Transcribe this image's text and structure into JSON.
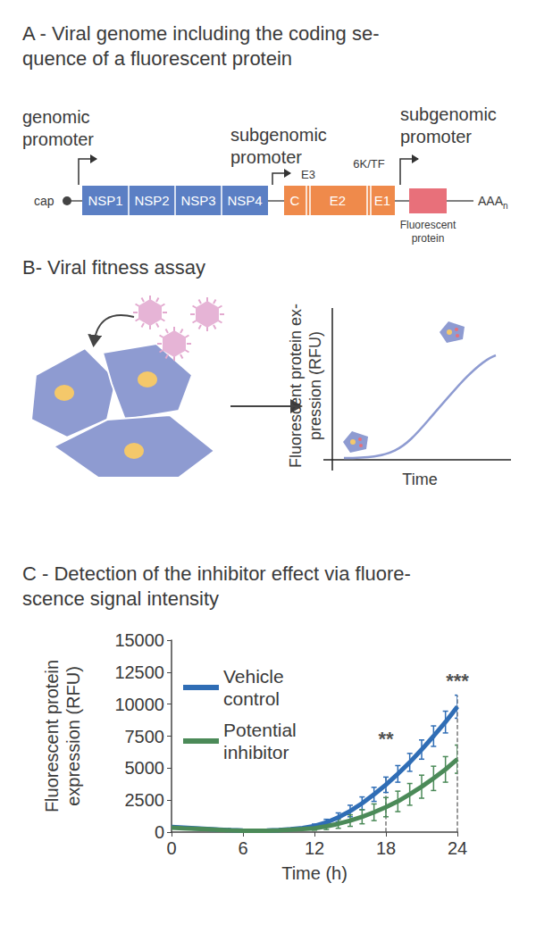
{
  "panel_a": {
    "title": [
      "A - Viral genome including the coding se-",
      "quence of a fluorescent protein"
    ],
    "promoters": [
      [
        "genomic",
        "promoter"
      ],
      [
        "subgenomic",
        "promoter"
      ],
      [
        "subgenomic",
        "promoter"
      ]
    ],
    "cap": "cap",
    "nonstructural_proteins": [
      "NSP1",
      "NSP2",
      "NSP3",
      "NSP4"
    ],
    "structural_proteins": [
      "C",
      "E2",
      "E1"
    ],
    "small_labels": [
      "E3",
      "6K/TF"
    ],
    "reporter": [
      "Fluorescent",
      "protein"
    ],
    "poly_a": "AAA",
    "poly_a_subscript": "n"
  },
  "panel_b": {
    "title": "B- Viral fitness assay",
    "y_label": [
      "Fluorescent protein ex-",
      "pression (RFU)"
    ],
    "x_label": "Time"
  },
  "panel_c": {
    "title": [
      "C - Detection of the inhibitor effect via fluore-",
      "scence signal intensity"
    ]
  },
  "chart_data": {
    "type": "line",
    "x_label": "Time (h)",
    "y_label": "Fluorescent protein\nexpression (RFU)",
    "x": [
      0,
      1,
      2,
      3,
      4,
      5,
      6,
      7,
      8,
      9,
      10,
      11,
      12,
      13,
      14,
      15,
      16,
      17,
      18,
      19,
      20,
      21,
      22,
      23,
      24
    ],
    "xlim": [
      0,
      24
    ],
    "xticks": [
      0,
      6,
      12,
      18,
      24
    ],
    "ylim": [
      0,
      15000
    ],
    "yticks": [
      0,
      2500,
      5000,
      7500,
      10000,
      12500,
      15000
    ],
    "grid": false,
    "legend": "top-left",
    "series": [
      {
        "name": "Vehicle control",
        "color": "#2f6db5",
        "values": [
          400,
          350,
          300,
          250,
          200,
          150,
          120,
          110,
          120,
          150,
          220,
          320,
          480,
          750,
          1150,
          1650,
          2250,
          2950,
          3700,
          4550,
          5450,
          6450,
          7500,
          8600,
          9800
        ],
        "errors": [
          50,
          50,
          50,
          50,
          50,
          50,
          50,
          50,
          50,
          50,
          50,
          50,
          150,
          250,
          350,
          450,
          500,
          550,
          600,
          650,
          700,
          750,
          800,
          850,
          900
        ]
      },
      {
        "name": "Potential inhibitor",
        "color": "#4b8a58",
        "values": [
          350,
          300,
          260,
          220,
          180,
          140,
          110,
          100,
          110,
          140,
          190,
          240,
          300,
          450,
          650,
          900,
          1200,
          1550,
          1950,
          2400,
          2950,
          3550,
          4200,
          4900,
          5700
        ],
        "errors": [
          50,
          50,
          50,
          50,
          50,
          50,
          50,
          50,
          50,
          50,
          50,
          50,
          150,
          250,
          350,
          450,
          550,
          650,
          750,
          800,
          850,
          900,
          950,
          1000,
          1100
        ]
      }
    ],
    "annotations": [
      {
        "text": "**",
        "x": 18,
        "y": 7300
      },
      {
        "text": "***",
        "x": 24,
        "y": 11800
      }
    ]
  }
}
